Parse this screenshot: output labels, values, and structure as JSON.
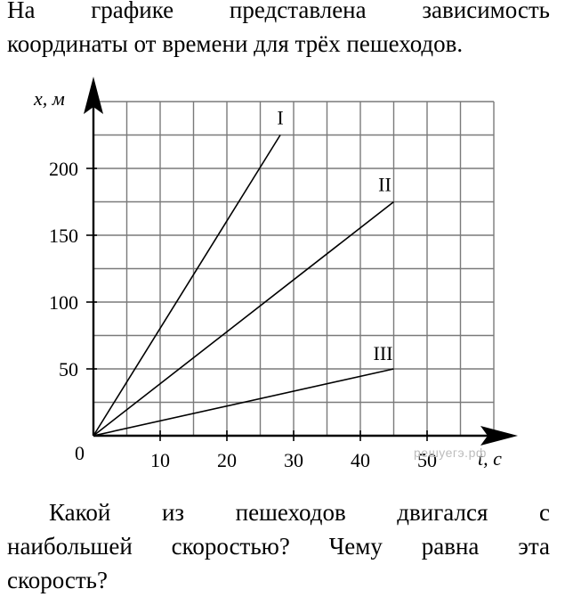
{
  "problem": {
    "intro_line1": "На графике представлена зависимость",
    "intro_line2": "координаты от времени для трёх пешеходов.",
    "question_line1": "Какой из пешеходов двигался с",
    "question_line2": "наибольшей скоростью? Чему равна эта",
    "question_line3": "скорость?"
  },
  "watermark": "решуегэ.рф",
  "chart_data": {
    "type": "line",
    "title": "",
    "xlabel": "t, c",
    "ylabel": "x, м",
    "xlim": [
      0,
      60
    ],
    "ylim": [
      0,
      250
    ],
    "x_ticks": [
      10,
      20,
      30,
      40,
      50
    ],
    "y_ticks": [
      50,
      100,
      150,
      200
    ],
    "origin_label": "0",
    "grid": true,
    "grid_x_step": 5,
    "grid_y_step": 25,
    "series": [
      {
        "name": "I",
        "x": [
          0,
          28
        ],
        "y": [
          0,
          225
        ]
      },
      {
        "name": "II",
        "x": [
          0,
          45
        ],
        "y": [
          0,
          175
        ]
      },
      {
        "name": "III",
        "x": [
          0,
          45
        ],
        "y": [
          0,
          50
        ]
      }
    ]
  }
}
